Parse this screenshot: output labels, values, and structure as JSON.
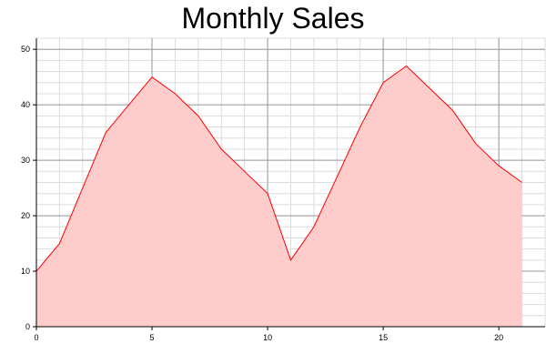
{
  "chart_data": {
    "type": "area",
    "title": "Monthly Sales",
    "xlabel": "",
    "ylabel": "",
    "x": [
      0,
      1,
      2,
      3,
      4,
      5,
      6,
      7,
      8,
      9,
      10,
      11,
      12,
      13,
      14,
      15,
      16,
      17,
      18,
      19,
      20,
      21
    ],
    "series": [
      {
        "values": [
          10,
          15,
          25,
          35,
          40,
          45,
          42,
          38,
          32,
          28,
          24,
          12,
          18,
          27,
          36,
          44,
          47,
          43,
          39,
          33,
          29,
          26
        ],
        "line_color": "#ff0000",
        "fill_color": "#ffcccc"
      }
    ],
    "xlim": [
      0,
      22
    ],
    "ylim": [
      0,
      52
    ],
    "xticks": [
      0,
      5,
      10,
      15,
      20
    ],
    "yticks": [
      0,
      10,
      20,
      30,
      40,
      50
    ],
    "grid": true,
    "legend": "none"
  }
}
